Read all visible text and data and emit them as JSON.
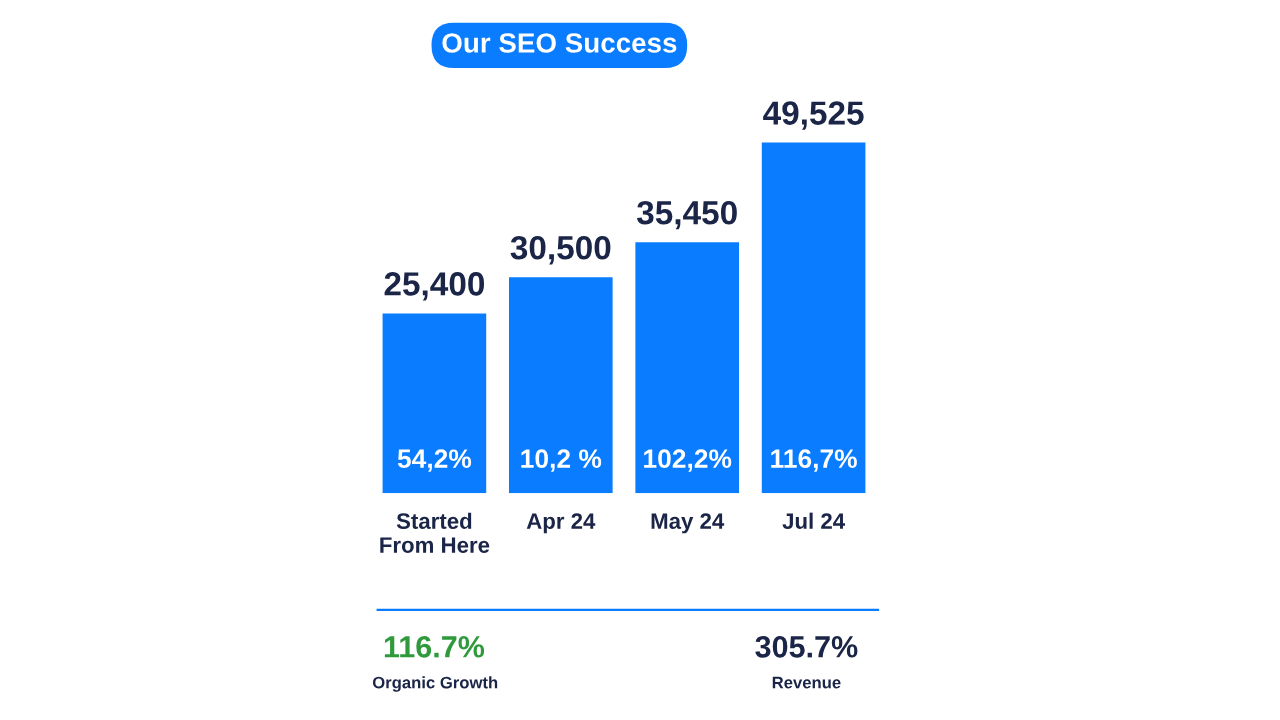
{
  "chart_data": {
    "type": "bar",
    "title": "Our SEO Success",
    "categories": [
      "Started From Here",
      "Apr 24",
      "May 24",
      "Jul 24"
    ],
    "values": [
      25400,
      30500,
      35450,
      49525
    ],
    "color": "#0a7cff",
    "value_labels": [
      "25,400",
      "30,500",
      "35,450",
      "49,525"
    ],
    "annotations": [
      "54,2%",
      "10,2 %",
      "102,2%",
      "116,7%",
      "116.7%",
      "Organic Growth",
      "305.7%",
      "Revenue"
    ]
  }
}
